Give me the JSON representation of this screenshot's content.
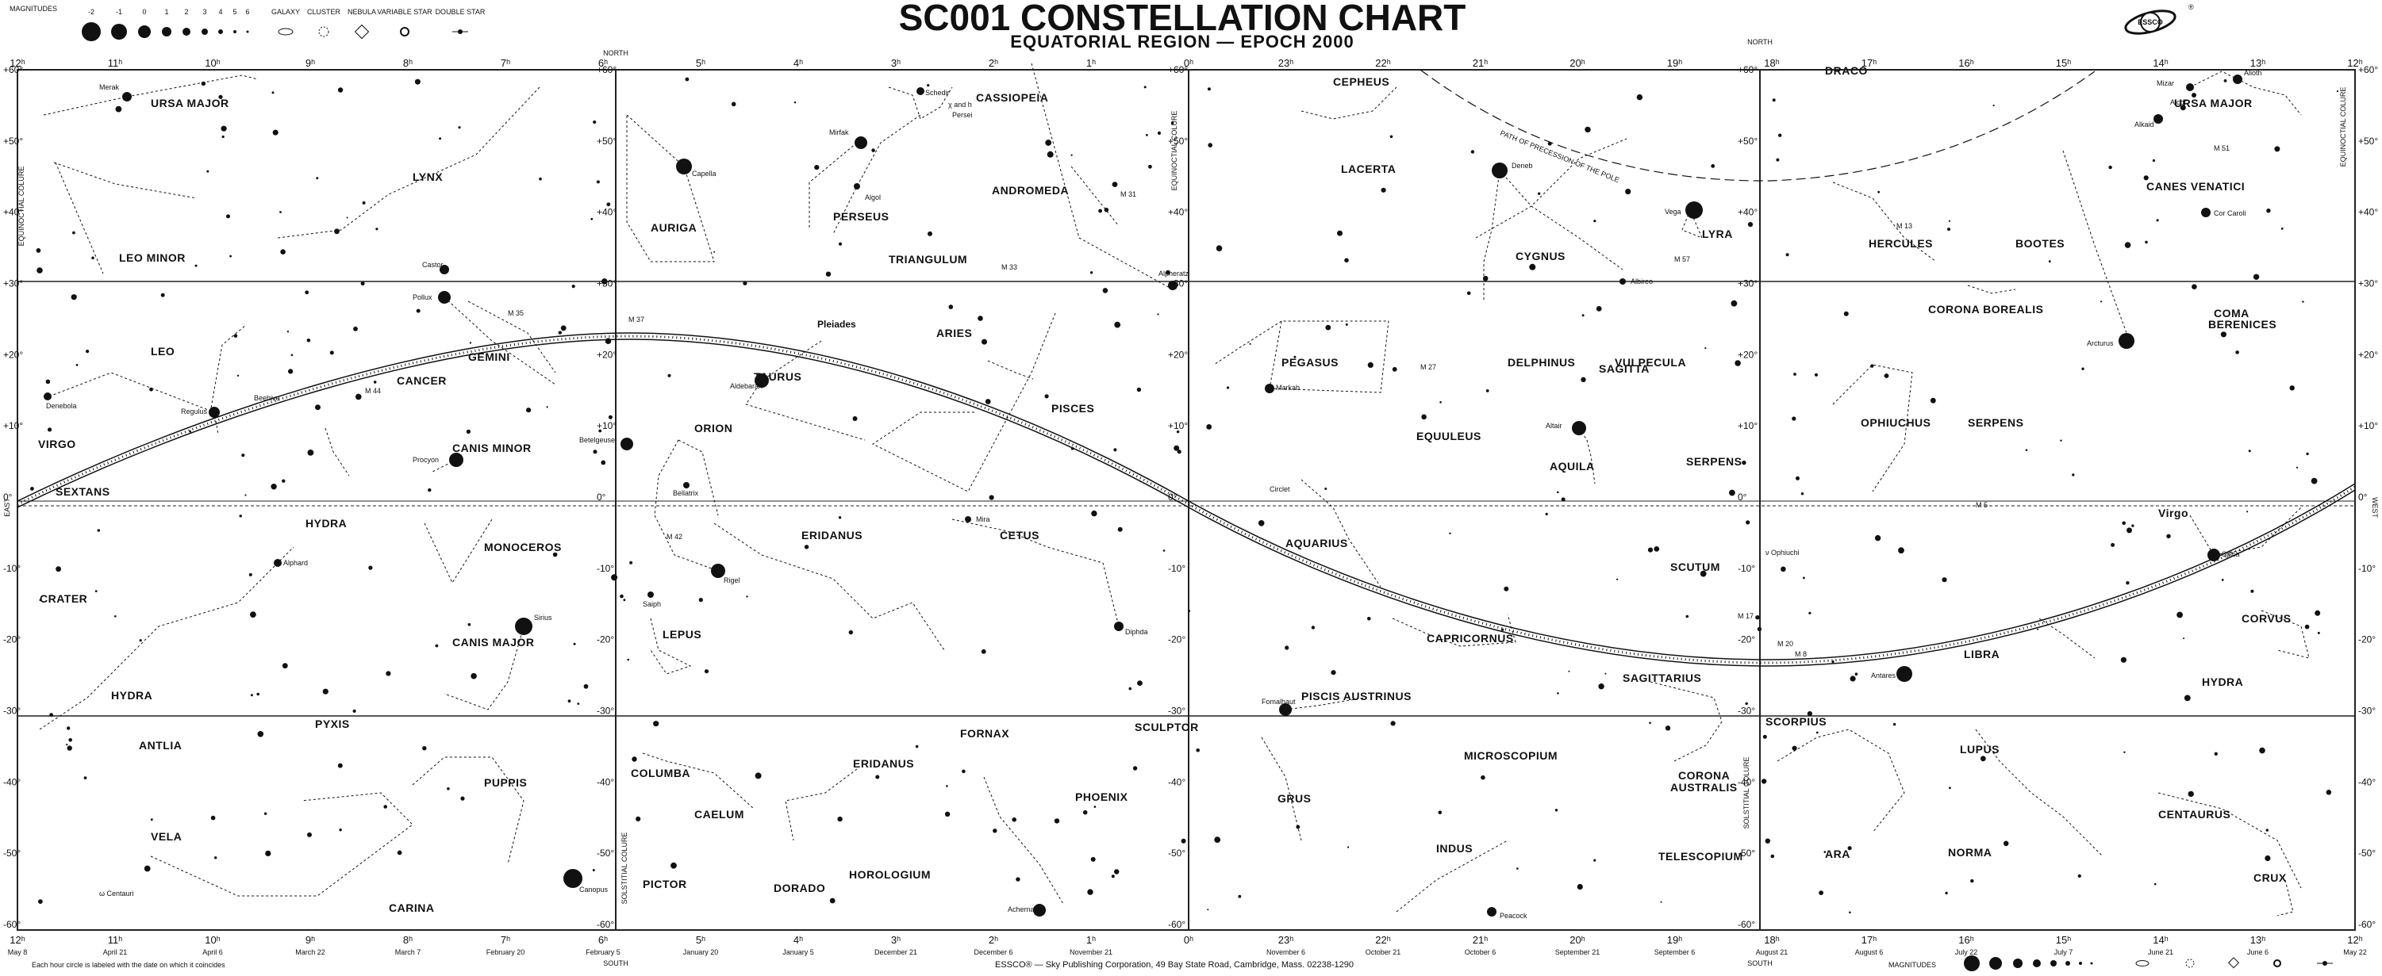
{
  "header": {
    "title": "SC001 CONSTELLATION CHART",
    "subtitle": "EQUATORIAL REGION — EPOCH 2000"
  },
  "brand_logo": "ESSCO",
  "magnitude_legend": {
    "label": "MAGNITUDES",
    "values": [
      "-2",
      "-1",
      "0",
      "1",
      "2",
      "3",
      "4",
      "5",
      "6"
    ],
    "object_types": [
      "GALAXY",
      "CLUSTER",
      "NEBULA",
      "VARIABLE STAR",
      "DOUBLE STAR"
    ]
  },
  "footer": {
    "note": "Each hour circle is labeled with the date on which it coincides",
    "publisher": "ESSCO® — Sky Publishing Corporation, 49 Bay State Road, Cambridge, Mass. 02238-1290"
  },
  "edge_labels": {
    "north": "NORTH",
    "south": "SOUTH",
    "east": "EAST",
    "west": "WEST",
    "equinoctial_colure": "EQUINOCTIAL COLURE",
    "solstitial_colure": "SOLSTITIAL COLURE",
    "precession_path": "PATH OF PRECESSION OF THE POLE"
  },
  "ra_top_left": [
    "12ʰ",
    "11ʰ",
    "10ʰ",
    "9ʰ",
    "8ʰ",
    "7ʰ",
    "6ʰ",
    "5ʰ",
    "4ʰ",
    "3ʰ",
    "2ʰ",
    "1ʰ",
    "0ʰ"
  ],
  "ra_top_right": [
    "0ʰ",
    "23ʰ",
    "22ʰ",
    "21ʰ",
    "20ʰ",
    "19ʰ",
    "18ʰ",
    "17ʰ",
    "16ʰ",
    "15ʰ",
    "14ʰ",
    "13ʰ",
    "12ʰ"
  ],
  "dec_labels": [
    "+60°",
    "+50°",
    "+40°",
    "+30°",
    "+20°",
    "+10°",
    "0°",
    "-10°",
    "-20°",
    "-30°",
    "-40°",
    "-50°",
    "-60°"
  ],
  "dates_bottom_left": [
    "May 8",
    "April 21",
    "April 6",
    "March 22",
    "March 7",
    "February 20",
    "February 5",
    "January 20",
    "January 5",
    "December 21",
    "December 6",
    "November 21"
  ],
  "dates_bottom_right": [
    "November 6",
    "October 21",
    "October 6",
    "September 21",
    "September 6",
    "August 21",
    "August 6",
    "July 22",
    "July 7",
    "June 21",
    "June 6",
    "May 22"
  ],
  "constellations": {
    "ursa_major_l": "URSA MAJOR",
    "lynx": "LYNX",
    "leo_minor": "LEO MINOR",
    "leo": "LEO",
    "gemini": "GEMINI",
    "cancer": "CANCER",
    "canis_minor": "CANIS MINOR",
    "virgo_l": "VIRGO",
    "auriga": "AURIGA",
    "perseus": "PERSEUS",
    "cassiopeia": "CASSIOPEIA",
    "andromeda": "ANDROMEDA",
    "triangulum": "TRIANGULUM",
    "aries": "ARIES",
    "taurus": "TAURUS",
    "orion": "ORION",
    "pisces": "PISCES",
    "sextans": "SEXTANS",
    "hydra_1": "HYDRA",
    "monoceros": "MONOCEROS",
    "crater": "CRATER",
    "canis_major": "CANIS MAJOR",
    "hydra_2": "HYDRA",
    "eridanus_1": "ERIDANUS",
    "cetus": "CETUS",
    "lepus": "LEPUS",
    "antlia": "ANTLIA",
    "pyxis": "PYXIS",
    "puppis": "PUPPIS",
    "vela": "VELA",
    "carina": "CARINA",
    "columba": "COLUMBA",
    "caelum": "CAELUM",
    "eridanus_2": "ERIDANUS",
    "fornax": "FORNAX",
    "sculptor": "SCULPTOR",
    "phoenix": "PHOENIX",
    "horologium": "HOROLOGIUM",
    "pictor": "PICTOR",
    "dorado": "DORADO",
    "cepheus": "CEPHEUS",
    "lacerta": "LACERTA",
    "cygnus": "CYGNUS",
    "lyra": "LYRA",
    "pegasus": "PEGASUS",
    "delphinus": "DELPHINUS",
    "vulpecula": "VULPECULA",
    "sagitta": "SAGITTA",
    "equuleus": "EQUULEUS",
    "aquila": "AQUILA",
    "serpens_1": "SERPENS",
    "aquarius": "AQUARIUS",
    "scutum": "SCUTUM",
    "capricornus": "CAPRICORNUS",
    "sagittarius": "SAGITTARIUS",
    "piscis_austrinus": "PISCIS AUSTRINUS",
    "microscopium": "MICROSCOPIUM",
    "corona_australis_a": "CORONA",
    "corona_australis_b": "AUSTRALIS",
    "grus": "GRUS",
    "indus": "INDUS",
    "telescopium": "TELESCOPIUM",
    "draco": "DRACO",
    "ursa_major_r": "URSA MAJOR",
    "canes_venatici": "CANES VENATICI",
    "hercules": "HERCULES",
    "bootes": "BOOTES",
    "corona_borealis": "CORONA BOREALIS",
    "coma_a": "COMA",
    "coma_b": "BERENICES",
    "ophiuchus": "OPHIUCHUS",
    "serpens_2": "SERPENS",
    "virgo_r": "Virgo",
    "libra": "LIBRA",
    "corvus": "CORVUS",
    "hydra_3": "HYDRA",
    "scorpius": "SCORPIUS",
    "lupus": "LUPUS",
    "centaurus": "CENTAURUS",
    "ara": "ARA",
    "norma": "NORMA",
    "crux": "CRUX"
  },
  "stars": {
    "capella": "Capella",
    "castor": "Castor",
    "pollux": "Pollux",
    "regulus": "Regulus",
    "procyon": "Procyon",
    "betelgeuse": "Betelgeuse",
    "bellatrix": "Bellatrix",
    "rigel": "Rigel",
    "aldebaran": "Aldebaran",
    "sirius": "Sirius",
    "canopus": "Canopus",
    "denebola": "Denebola",
    "alphard": "Alphard",
    "saiph": "Saiph",
    "achernar": "Achernar",
    "mira": "Mira",
    "diphda": "Diphda",
    "mirfak": "Mirfak",
    "algol": "Algol",
    "schedir": "Schedir",
    "alpheratz": "Alpheratz",
    "merak": "Merak",
    "deneb": "Deneb",
    "vega": "Vega",
    "altair": "Altair",
    "albireo": "Albireo",
    "fomalhaut": "Fomalhaut",
    "peacock": "Peacock",
    "markab": "Markab",
    "arcturus": "Arcturus",
    "spica": "Spica",
    "antares": "Antares",
    "mizar": "Mizar",
    "alcor": "Alcor",
    "alkaid": "Alkaid",
    "cor_caroli": "Cor Caroli",
    "alioth": "Alioth",
    "ophiuchi": "ν Ophiuchi",
    "pleiades": "Pleiades",
    "centauri": "ω Centauri"
  },
  "objects": {
    "m31": "M 31",
    "m33": "M 33",
    "m35": "M 35",
    "m44": "M 44",
    "m42": "M 42",
    "m37": "M 37",
    "m13": "M 13",
    "m57": "M 57",
    "m27": "M 27",
    "m5": "M 5",
    "m51": "M 51",
    "m17": "M 17",
    "m20": "M 20",
    "m8": "M 8",
    "chi_h_persei_a": "χ and h",
    "chi_h_persei_b": "Persei",
    "circlet": "Circlet",
    "beehive": "Beehive"
  },
  "colors": {
    "ink": "#111111",
    "paper": "#ffffff",
    "grid": "#222222"
  }
}
